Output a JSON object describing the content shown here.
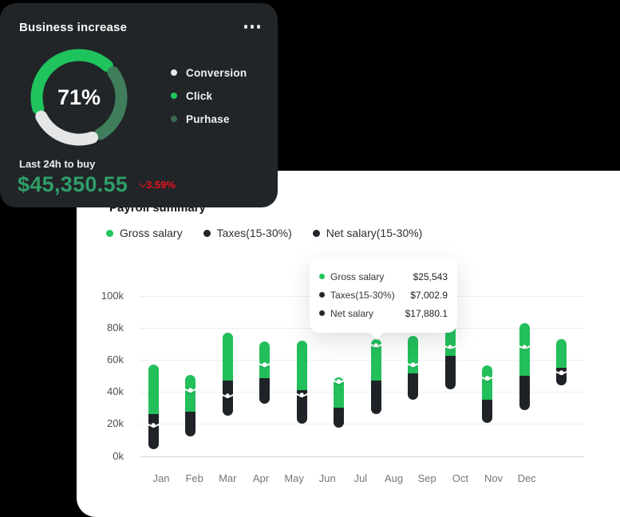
{
  "business_card": {
    "title": "Business increase",
    "menu_icon": "ellipsis-icon",
    "donut_center": "71%",
    "legend": [
      {
        "label": "Conversion",
        "color": "#e7e9ea"
      },
      {
        "label": "Click",
        "color": "#1fc45c"
      },
      {
        "label": "Purhase",
        "color": "#3c6b52"
      }
    ],
    "footer_label": "Last 24h to buy",
    "amount": "$45,350.55",
    "change": {
      "value": "3.59%",
      "direction": "down",
      "color": "#e8111f"
    }
  },
  "payroll_card": {
    "title": "Payroll summary",
    "legend": [
      {
        "label": "Gross salary",
        "color": "#22c55e"
      },
      {
        "label": "Taxes(15-30%)",
        "color": "#23272b"
      },
      {
        "label": "Net salary(15-30%)",
        "color": "#23272b"
      }
    ],
    "tooltip": {
      "rows": [
        {
          "label": "Gross salary",
          "value": "$25,543",
          "color": "#22c55e"
        },
        {
          "label": "Taxes(15-30%)",
          "value": "$7,002.9",
          "color": "#23272b"
        },
        {
          "label": "Net salary",
          "value": "$17,880.1",
          "color": "#23272b"
        }
      ]
    }
  },
  "chart_data": [
    {
      "type": "pie",
      "title": "Business increase",
      "center_label": "71%",
      "legend_position": "right",
      "segments": [
        {
          "label": "Click",
          "share_pct": 45,
          "color": "#1fc45c",
          "start_deg": 255,
          "sweep_deg": 147
        },
        {
          "label": "Purhase",
          "share_pct": 30,
          "color": "#3f7d5b",
          "start_deg": 54,
          "sweep_deg": 96
        },
        {
          "label": "Conversion",
          "share_pct": 25,
          "color": "#e4e6e7",
          "start_deg": 162,
          "sweep_deg": 81
        }
      ]
    },
    {
      "type": "bar",
      "title": "Payroll summary",
      "subtype": "floating-capsule-range",
      "categories": [
        "Jan",
        "Feb",
        "Mar",
        "Apr",
        "May",
        "Jun",
        "Jul",
        "Aug",
        "Sep",
        "Oct",
        "Nov",
        "Dec"
      ],
      "unit": "k (thousand $)",
      "ylim": [
        0,
        100
      ],
      "grid": "dotted-horizontal",
      "legend": [
        "Gross salary",
        "Taxes(15-30%)",
        "Net salary(15-30%)"
      ],
      "yticks": [
        {
          "label": "0k",
          "value": 0
        },
        {
          "label": "20k",
          "value": 20
        },
        {
          "label": "40k",
          "value": 40
        },
        {
          "label": "60k",
          "value": 60
        },
        {
          "label": "80k",
          "value": 80
        },
        {
          "label": "100k",
          "value": 100
        }
      ],
      "bars": [
        {
          "month": "Jan",
          "low_k": 4,
          "split_k": 26,
          "high_k": 57,
          "marker_k": 19
        },
        {
          "month": "Feb",
          "low_k": 12,
          "split_k": 27.5,
          "high_k": 50.5,
          "marker_k": 41
        },
        {
          "month": "Mar",
          "low_k": 25,
          "split_k": 47,
          "high_k": 77,
          "marker_k": 37.5
        },
        {
          "month": "Apr",
          "low_k": 32.5,
          "split_k": 48.5,
          "high_k": 71.5,
          "marker_k": 57
        },
        {
          "month": "May",
          "low_k": 20,
          "split_k": 41,
          "high_k": 72,
          "marker_k": 38
        },
        {
          "month": "Jun",
          "low_k": 17.5,
          "split_k": 30,
          "high_k": 49,
          "marker_k": 46.5
        },
        {
          "month": "Jul",
          "low_k": 26,
          "split_k": 47,
          "high_k": 73,
          "marker_k": 69
        },
        {
          "month": "Aug",
          "low_k": 35,
          "split_k": 51.5,
          "high_k": 75,
          "marker_k": 57
        },
        {
          "month": "Sep",
          "low_k": 41.5,
          "split_k": 62.5,
          "high_k": 95.5,
          "marker_k": 68
        },
        {
          "month": "Oct",
          "low_k": 20.5,
          "split_k": 35,
          "high_k": 56.5,
          "marker_k": 48.5
        },
        {
          "month": "Nov",
          "low_k": 28.5,
          "split_k": 50,
          "high_k": 83,
          "marker_k": 68
        },
        {
          "month": "Dec",
          "low_k": 44,
          "split_k": 55,
          "high_k": 73,
          "marker_k": 52
        }
      ],
      "colors": {
        "upper_segment": "#22bf5b",
        "lower_segment": "#1f2327",
        "marker": "#ffffff"
      },
      "tooltip_anchor_index": 6
    }
  ]
}
